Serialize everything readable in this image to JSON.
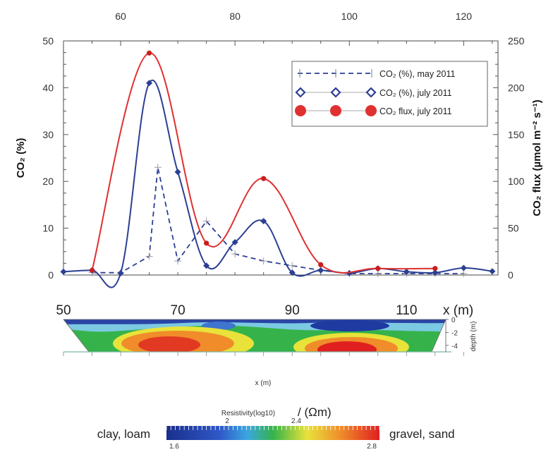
{
  "chart_data": [
    {
      "type": "line",
      "xlim": [
        50,
        126
      ],
      "ylim_left": [
        0,
        50
      ],
      "ylim_right": [
        0,
        250
      ],
      "top_ticks": [
        60,
        80,
        100,
        120
      ],
      "bottom_ticks": [
        50,
        70,
        90,
        110
      ],
      "left_ticks": [
        0,
        10,
        20,
        30,
        40,
        50
      ],
      "right_ticks": [
        0,
        50,
        100,
        150,
        200,
        250
      ],
      "ylabel": "CO₂ (%)",
      "ylabel_right": "CO₂ flux (µmol m⁻² s⁻¹)",
      "xlabel": "x (m)",
      "legend_position": "top-right",
      "series": [
        {
          "name": "CO₂ (%), may 2011",
          "axis": "left",
          "color": "#2b3f93",
          "style": "dashed-plus",
          "x": [
            55,
            60,
            65,
            66.5,
            70,
            75,
            80,
            85,
            90,
            95,
            100,
            105,
            110,
            115,
            120
          ],
          "values": [
            0.5,
            0.5,
            4,
            23,
            3,
            11.5,
            4.5,
            3,
            2,
            1,
            0.3,
            0.3,
            0.3,
            0.3,
            0.3
          ]
        },
        {
          "name": "CO₂ (%), july 2011",
          "axis": "left",
          "color": "#2b3f93",
          "style": "solid-diamond",
          "x": [
            50,
            55,
            60,
            65,
            70,
            75,
            80,
            85,
            90,
            95,
            100,
            105,
            110,
            115,
            120,
            125
          ],
          "values": [
            0.7,
            1,
            0.4,
            41,
            22,
            2,
            7,
            11.5,
            0.5,
            1,
            0.4,
            1.4,
            0.7,
            0.5,
            1.5,
            0.8
          ]
        },
        {
          "name": "CO₂ flux, july 2011",
          "axis": "right",
          "color": "#e03030",
          "style": "solid-dot",
          "x": [
            55,
            65,
            75,
            85,
            95,
            105,
            115
          ],
          "values": [
            5,
            237,
            34,
            103,
            11,
            7,
            7
          ]
        }
      ]
    },
    {
      "type": "heatmap",
      "xlabel": "x (m)",
      "ylabel": "depth (m)",
      "depth_ticks": [
        0,
        -2,
        -4
      ],
      "x_unit_label": "x (m)",
      "colorbar": {
        "title": "Resistivity(log10)",
        "unit": "/ (Ωm)",
        "ticks": [
          "1.6",
          "2",
          "2.4",
          "2.8"
        ],
        "left_label": "clay, loam",
        "right_label": "gravel, sand"
      }
    }
  ]
}
